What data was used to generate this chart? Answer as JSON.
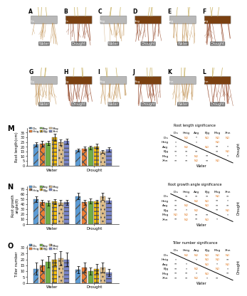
{
  "species": [
    "Dis",
    "Heig",
    "Azg",
    "Bjg",
    "Mxg",
    "Xhn"
  ],
  "bar_colors": [
    "#5b9bd5",
    "#ed7d31",
    "#70ad47",
    "#ffc000",
    "#e2c08a",
    "#7985cb"
  ],
  "bar_patterns": [
    "///",
    "xxx",
    "",
    "+++",
    "...",
    "---"
  ],
  "M_water": [
    22.5,
    23.5,
    24.0,
    30.0,
    24.5,
    26.0
  ],
  "M_drought": [
    16.5,
    18.0,
    19.0,
    20.5,
    15.0,
    17.0
  ],
  "M_water_err": [
    2.5,
    3.0,
    2.5,
    4.0,
    3.0,
    2.5
  ],
  "M_drought_err": [
    1.5,
    2.0,
    2.0,
    2.5,
    1.5,
    2.0
  ],
  "M_ylabel": "Root length(cm)",
  "M_ylim": [
    0,
    40
  ],
  "M_yticks": [
    0,
    5,
    10,
    15,
    20,
    25,
    30,
    35
  ],
  "N_water": [
    50,
    44,
    42,
    45,
    43,
    44
  ],
  "N_drought": [
    56,
    44,
    46,
    45,
    56,
    47
  ],
  "N_water_err": [
    6,
    5,
    5,
    5,
    5,
    5
  ],
  "N_drought_err": [
    6,
    5,
    5,
    4,
    7,
    5
  ],
  "N_ylabel": "Root growth\nangle(θ)",
  "N_ylim": [
    0,
    75
  ],
  "N_yticks": [
    0,
    10,
    20,
    30,
    40,
    50,
    60,
    70
  ],
  "O_water": [
    12,
    15,
    18,
    20,
    21,
    20
  ],
  "O_drought": [
    11,
    13,
    10,
    12,
    13,
    9
  ],
  "O_water_err": [
    5,
    5,
    5,
    5,
    6,
    6
  ],
  "O_drought_err": [
    3,
    4,
    3,
    4,
    4,
    3
  ],
  "O_ylabel": "Tiller number",
  "O_ylim": [
    0,
    32
  ],
  "O_yticks": [
    0,
    5,
    10,
    15,
    20,
    25,
    30
  ],
  "sig_M_title": "Root length significance",
  "sig_N_title": "Root growth angle significance",
  "sig_O_title": "Tiller number significance",
  "sig_cols": [
    "Dis",
    "Heig",
    "Azg",
    "Bjg",
    "Mxg",
    "Xhn"
  ],
  "sig_rows": [
    "Dis",
    "Heig",
    "Azg",
    "Bjg",
    "Mxg",
    "Xhn"
  ],
  "sig_M_water": [
    [
      "",
      "ND",
      "*",
      "ND",
      "ND",
      "ND"
    ],
    [
      "ND",
      "",
      "*",
      "",
      "ND",
      ""
    ],
    [
      "ND",
      "ND",
      "",
      "ND",
      "**",
      "*"
    ],
    [
      "**",
      "**",
      "**",
      "",
      "**",
      "ND"
    ],
    [
      "*",
      "*",
      "ND",
      "**",
      "",
      "*"
    ],
    [
      "**",
      "**",
      "ND",
      "**",
      "ND",
      ""
    ]
  ],
  "sig_M_drought": [
    [
      "",
      "*",
      "*",
      "**",
      "*",
      "**"
    ],
    [
      "*",
      "",
      "ND",
      "**",
      "*",
      "**"
    ],
    [
      "*",
      "ND",
      "",
      "**",
      "ND",
      "ND"
    ],
    [
      "**",
      "**",
      "**",
      "",
      "**",
      "**"
    ],
    [
      "*",
      "*",
      "ND",
      "**",
      "",
      "ND"
    ],
    [
      "**",
      "**",
      "ND",
      "**",
      "ND",
      ""
    ]
  ],
  "sig_N_water": [
    [
      "",
      "**",
      "**",
      "**",
      "ND",
      "**"
    ],
    [
      "**",
      "",
      "ND",
      "ND",
      "**",
      "*"
    ],
    [
      "**",
      "ND",
      "",
      "ND",
      "**",
      "**"
    ],
    [
      "**",
      "*",
      "ND",
      "",
      "**",
      "ND"
    ],
    [
      "ND",
      "ND",
      "*",
      "**",
      "",
      "*"
    ],
    [
      "**",
      "ND",
      "ND",
      "ND",
      "**",
      ""
    ]
  ],
  "sig_N_drought": [
    [
      "",
      "**",
      "**",
      "**",
      "ND",
      "**"
    ],
    [
      "**",
      "",
      "ND",
      "*",
      "ND",
      "ND"
    ],
    [
      "**",
      "ND",
      "",
      "ND",
      "**",
      "**"
    ],
    [
      "**",
      "*",
      "ND",
      "",
      "**",
      "ND"
    ],
    [
      "ND",
      "ND",
      "**",
      "**",
      "",
      "*"
    ],
    [
      "**",
      "ND",
      "**",
      "ND",
      "*",
      ""
    ]
  ],
  "sig_O_water": [
    [
      "",
      "ND",
      "ND",
      "ND",
      "ND",
      "ND"
    ],
    [
      "*",
      "",
      "*",
      "ND",
      "ND",
      "**"
    ],
    [
      "**",
      "ND",
      "",
      "ND",
      "*",
      "ND"
    ],
    [
      "**",
      "*",
      "ND",
      "",
      "ND",
      "*"
    ],
    [
      "**",
      "**",
      "*",
      "ND",
      "",
      "**"
    ],
    [
      "**",
      "**",
      "ND",
      "ND",
      "**",
      ""
    ]
  ],
  "sig_O_drought": [
    [
      "",
      "ND",
      "ND",
      "ND",
      "ND",
      "ND"
    ],
    [
      "*",
      "",
      "*",
      "*",
      "**",
      "**"
    ],
    [
      "**",
      "*",
      "",
      "ND",
      "*",
      "ND"
    ],
    [
      "**",
      "*",
      "ND",
      "",
      "ND",
      "*"
    ],
    [
      "**",
      "**",
      "*",
      "ND",
      "",
      "**"
    ],
    [
      "**",
      "**",
      "ND",
      "*",
      "**",
      ""
    ]
  ],
  "orange_vals": [
    "ND"
  ],
  "photo_letters": [
    "A",
    "B",
    "C",
    "D",
    "E",
    "F",
    "G",
    "H",
    "I",
    "J",
    "K",
    "L"
  ],
  "photo_conditions": [
    "Water",
    "Drought",
    "Water",
    "Drought",
    "Water",
    "Drought",
    "Water",
    "Drought",
    "Water",
    "Drought",
    "Water",
    "Drought"
  ],
  "photo_labels": [
    "Dis",
    "Dis",
    "Heg",
    "Heg",
    "Azg",
    "Azg",
    "Bjg",
    "Bjg",
    "Mxg",
    "Mxg",
    "Xhn",
    "Xhn"
  ],
  "bg": "#ffffff"
}
